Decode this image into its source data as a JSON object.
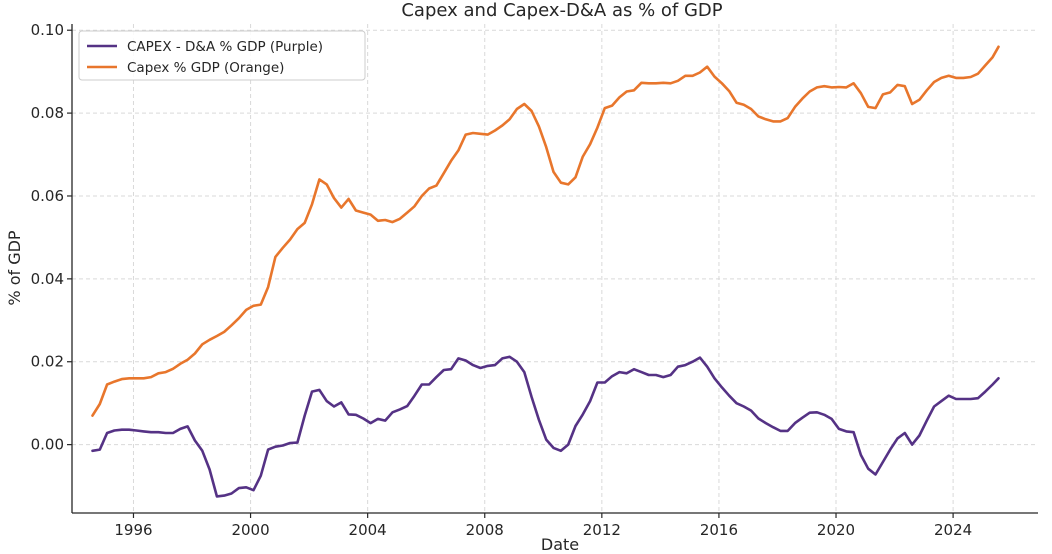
{
  "chart_data": {
    "type": "line",
    "title": "Capex and Capex-D&A as % of GDP",
    "xlabel": "Date",
    "ylabel": "% of GDP",
    "xlim": [
      1993.9,
      2026.9
    ],
    "ylim": [
      -0.0165,
      0.1015
    ],
    "x_ticks": [
      1996,
      2000,
      2004,
      2008,
      2012,
      2016,
      2020,
      2024
    ],
    "x_tick_labels": [
      "1996",
      "2000",
      "2004",
      "2008",
      "2012",
      "2016",
      "2020",
      "2024"
    ],
    "y_ticks": [
      0.0,
      0.02,
      0.04,
      0.06,
      0.08,
      0.1
    ],
    "y_tick_labels": [
      "0.00",
      "0.02",
      "0.04",
      "0.06",
      "0.08",
      "0.10"
    ],
    "grid": true,
    "legend_position": "top-left",
    "series": [
      {
        "name": "CAPEX - D&A % GDP (Purple)",
        "color": "#553285",
        "points": [
          [
            1994.6,
            -0.0015
          ],
          [
            1994.85,
            -0.0012
          ],
          [
            1995.1,
            0.0028
          ],
          [
            1995.35,
            0.0034
          ],
          [
            1995.6,
            0.0036
          ],
          [
            1995.85,
            0.0036
          ],
          [
            1996.1,
            0.0034
          ],
          [
            1996.35,
            0.0032
          ],
          [
            1996.6,
            0.003
          ],
          [
            1996.85,
            0.003
          ],
          [
            1997.1,
            0.0028
          ],
          [
            1997.35,
            0.0028
          ],
          [
            1997.6,
            0.0038
          ],
          [
            1997.85,
            0.0044
          ],
          [
            1998.1,
            0.001
          ],
          [
            1998.35,
            -0.0015
          ],
          [
            1998.6,
            -0.006
          ],
          [
            1998.85,
            -0.0125
          ],
          [
            1999.1,
            -0.0123
          ],
          [
            1999.35,
            -0.0118
          ],
          [
            1999.6,
            -0.0105
          ],
          [
            1999.85,
            -0.0103
          ],
          [
            2000.1,
            -0.011
          ],
          [
            2000.35,
            -0.0075
          ],
          [
            2000.6,
            -0.0012
          ],
          [
            2000.85,
            -0.0005
          ],
          [
            2001.1,
            -0.0002
          ],
          [
            2001.35,
            0.0004
          ],
          [
            2001.6,
            0.0005
          ],
          [
            2001.85,
            0.007
          ],
          [
            2002.1,
            0.0128
          ],
          [
            2002.35,
            0.0132
          ],
          [
            2002.6,
            0.0105
          ],
          [
            2002.85,
            0.0092
          ],
          [
            2003.1,
            0.0102
          ],
          [
            2003.35,
            0.0073
          ],
          [
            2003.6,
            0.0072
          ],
          [
            2003.85,
            0.0063
          ],
          [
            2004.1,
            0.0052
          ],
          [
            2004.35,
            0.0062
          ],
          [
            2004.6,
            0.0058
          ],
          [
            2004.85,
            0.0078
          ],
          [
            2005.1,
            0.0085
          ],
          [
            2005.35,
            0.0093
          ],
          [
            2005.6,
            0.0118
          ],
          [
            2005.85,
            0.0145
          ],
          [
            2006.1,
            0.0145
          ],
          [
            2006.35,
            0.0163
          ],
          [
            2006.6,
            0.018
          ],
          [
            2006.85,
            0.0182
          ],
          [
            2007.1,
            0.0208
          ],
          [
            2007.35,
            0.0203
          ],
          [
            2007.6,
            0.0192
          ],
          [
            2007.85,
            0.0185
          ],
          [
            2008.1,
            0.019
          ],
          [
            2008.35,
            0.0192
          ],
          [
            2008.6,
            0.0208
          ],
          [
            2008.85,
            0.0212
          ],
          [
            2009.1,
            0.02
          ],
          [
            2009.35,
            0.0175
          ],
          [
            2009.6,
            0.0115
          ],
          [
            2009.85,
            0.006
          ],
          [
            2010.1,
            0.0012
          ],
          [
            2010.35,
            -0.0008
          ],
          [
            2010.6,
            -0.0015
          ],
          [
            2010.85,
            0.0
          ],
          [
            2011.1,
            0.0045
          ],
          [
            2011.35,
            0.0073
          ],
          [
            2011.6,
            0.0105
          ],
          [
            2011.85,
            0.015
          ],
          [
            2012.1,
            0.015
          ],
          [
            2012.35,
            0.0165
          ],
          [
            2012.6,
            0.0175
          ],
          [
            2012.85,
            0.0172
          ],
          [
            2013.1,
            0.0182
          ],
          [
            2013.35,
            0.0175
          ],
          [
            2013.6,
            0.0168
          ],
          [
            2013.85,
            0.0168
          ],
          [
            2014.1,
            0.0163
          ],
          [
            2014.35,
            0.0168
          ],
          [
            2014.6,
            0.0188
          ],
          [
            2014.85,
            0.0192
          ],
          [
            2015.1,
            0.02
          ],
          [
            2015.35,
            0.021
          ],
          [
            2015.6,
            0.0188
          ],
          [
            2015.85,
            0.016
          ],
          [
            2016.1,
            0.0138
          ],
          [
            2016.35,
            0.0118
          ],
          [
            2016.6,
            0.01
          ],
          [
            2016.85,
            0.0092
          ],
          [
            2017.1,
            0.0082
          ],
          [
            2017.35,
            0.0063
          ],
          [
            2017.6,
            0.0052
          ],
          [
            2017.85,
            0.0042
          ],
          [
            2018.1,
            0.0033
          ],
          [
            2018.35,
            0.0033
          ],
          [
            2018.6,
            0.0052
          ],
          [
            2018.85,
            0.0065
          ],
          [
            2019.1,
            0.0077
          ],
          [
            2019.35,
            0.0078
          ],
          [
            2019.6,
            0.0072
          ],
          [
            2019.85,
            0.0062
          ],
          [
            2020.1,
            0.0038
          ],
          [
            2020.35,
            0.0032
          ],
          [
            2020.6,
            0.003
          ],
          [
            2020.85,
            -0.0025
          ],
          [
            2021.1,
            -0.0058
          ],
          [
            2021.35,
            -0.0072
          ],
          [
            2021.6,
            -0.0042
          ],
          [
            2021.85,
            -0.0012
          ],
          [
            2022.1,
            0.0015
          ],
          [
            2022.35,
            0.0028
          ],
          [
            2022.6,
            0.0
          ],
          [
            2022.85,
            0.0022
          ],
          [
            2023.1,
            0.0058
          ],
          [
            2023.35,
            0.0092
          ],
          [
            2023.6,
            0.0105
          ],
          [
            2023.85,
            0.0118
          ],
          [
            2024.1,
            0.011
          ],
          [
            2024.35,
            0.011
          ],
          [
            2024.6,
            0.011
          ],
          [
            2024.85,
            0.0112
          ],
          [
            2025.1,
            0.0128
          ],
          [
            2025.35,
            0.0145
          ],
          [
            2025.55,
            0.016
          ]
        ]
      },
      {
        "name": "Capex % GDP (Orange)",
        "color": "#e8762c",
        "points": [
          [
            1994.6,
            0.007
          ],
          [
            1994.85,
            0.0098
          ],
          [
            1995.1,
            0.0145
          ],
          [
            1995.35,
            0.0152
          ],
          [
            1995.6,
            0.0158
          ],
          [
            1995.85,
            0.016
          ],
          [
            1996.1,
            0.016
          ],
          [
            1996.35,
            0.016
          ],
          [
            1996.6,
            0.0163
          ],
          [
            1996.85,
            0.0172
          ],
          [
            1997.1,
            0.0175
          ],
          [
            1997.35,
            0.0183
          ],
          [
            1997.6,
            0.0195
          ],
          [
            1997.85,
            0.0205
          ],
          [
            1998.1,
            0.022
          ],
          [
            1998.35,
            0.0242
          ],
          [
            1998.6,
            0.0253
          ],
          [
            1998.85,
            0.0262
          ],
          [
            1999.1,
            0.0272
          ],
          [
            1999.35,
            0.0288
          ],
          [
            1999.6,
            0.0305
          ],
          [
            1999.85,
            0.0325
          ],
          [
            2000.1,
            0.0335
          ],
          [
            2000.35,
            0.0338
          ],
          [
            2000.6,
            0.038
          ],
          [
            2000.85,
            0.0453
          ],
          [
            2001.1,
            0.0475
          ],
          [
            2001.35,
            0.0495
          ],
          [
            2001.6,
            0.052
          ],
          [
            2001.85,
            0.0535
          ],
          [
            2002.1,
            0.058
          ],
          [
            2002.35,
            0.064
          ],
          [
            2002.6,
            0.0628
          ],
          [
            2002.85,
            0.0595
          ],
          [
            2003.1,
            0.0572
          ],
          [
            2003.35,
            0.0593
          ],
          [
            2003.6,
            0.0565
          ],
          [
            2003.85,
            0.056
          ],
          [
            2004.1,
            0.0555
          ],
          [
            2004.35,
            0.054
          ],
          [
            2004.6,
            0.0542
          ],
          [
            2004.85,
            0.0537
          ],
          [
            2005.1,
            0.0545
          ],
          [
            2005.35,
            0.056
          ],
          [
            2005.6,
            0.0575
          ],
          [
            2005.85,
            0.06
          ],
          [
            2006.1,
            0.0618
          ],
          [
            2006.35,
            0.0625
          ],
          [
            2006.6,
            0.0655
          ],
          [
            2006.85,
            0.0685
          ],
          [
            2007.1,
            0.071
          ],
          [
            2007.35,
            0.0748
          ],
          [
            2007.6,
            0.0752
          ],
          [
            2007.85,
            0.075
          ],
          [
            2008.1,
            0.0748
          ],
          [
            2008.35,
            0.0758
          ],
          [
            2008.6,
            0.077
          ],
          [
            2008.85,
            0.0785
          ],
          [
            2009.1,
            0.081
          ],
          [
            2009.35,
            0.0822
          ],
          [
            2009.6,
            0.0805
          ],
          [
            2009.85,
            0.0768
          ],
          [
            2010.1,
            0.0718
          ],
          [
            2010.35,
            0.0658
          ],
          [
            2010.6,
            0.0632
          ],
          [
            2010.85,
            0.0628
          ],
          [
            2011.1,
            0.0645
          ],
          [
            2011.35,
            0.0695
          ],
          [
            2011.6,
            0.0725
          ],
          [
            2011.85,
            0.0765
          ],
          [
            2012.1,
            0.0812
          ],
          [
            2012.35,
            0.0818
          ],
          [
            2012.6,
            0.0838
          ],
          [
            2012.85,
            0.0852
          ],
          [
            2013.1,
            0.0855
          ],
          [
            2013.35,
            0.0873
          ],
          [
            2013.6,
            0.0872
          ],
          [
            2013.85,
            0.0872
          ],
          [
            2014.1,
            0.0873
          ],
          [
            2014.35,
            0.0872
          ],
          [
            2014.6,
            0.0878
          ],
          [
            2014.85,
            0.089
          ],
          [
            2015.1,
            0.089
          ],
          [
            2015.35,
            0.0898
          ],
          [
            2015.6,
            0.0912
          ],
          [
            2015.85,
            0.0888
          ],
          [
            2016.1,
            0.0872
          ],
          [
            2016.35,
            0.0853
          ],
          [
            2016.6,
            0.0825
          ],
          [
            2016.85,
            0.082
          ],
          [
            2017.1,
            0.081
          ],
          [
            2017.35,
            0.0792
          ],
          [
            2017.6,
            0.0785
          ],
          [
            2017.85,
            0.078
          ],
          [
            2018.1,
            0.078
          ],
          [
            2018.35,
            0.0788
          ],
          [
            2018.6,
            0.0815
          ],
          [
            2018.85,
            0.0835
          ],
          [
            2019.1,
            0.0852
          ],
          [
            2019.35,
            0.0862
          ],
          [
            2019.6,
            0.0865
          ],
          [
            2019.85,
            0.0862
          ],
          [
            2020.1,
            0.0863
          ],
          [
            2020.35,
            0.0862
          ],
          [
            2020.6,
            0.0872
          ],
          [
            2020.85,
            0.0848
          ],
          [
            2021.1,
            0.0815
          ],
          [
            2021.35,
            0.0812
          ],
          [
            2021.6,
            0.0845
          ],
          [
            2021.85,
            0.085
          ],
          [
            2022.1,
            0.0868
          ],
          [
            2022.35,
            0.0865
          ],
          [
            2022.6,
            0.0822
          ],
          [
            2022.85,
            0.0832
          ],
          [
            2023.1,
            0.0855
          ],
          [
            2023.35,
            0.0875
          ],
          [
            2023.6,
            0.0885
          ],
          [
            2023.85,
            0.089
          ],
          [
            2024.1,
            0.0885
          ],
          [
            2024.35,
            0.0885
          ],
          [
            2024.6,
            0.0887
          ],
          [
            2024.85,
            0.0895
          ],
          [
            2025.1,
            0.0915
          ],
          [
            2025.35,
            0.0935
          ],
          [
            2025.55,
            0.096
          ]
        ]
      }
    ]
  }
}
